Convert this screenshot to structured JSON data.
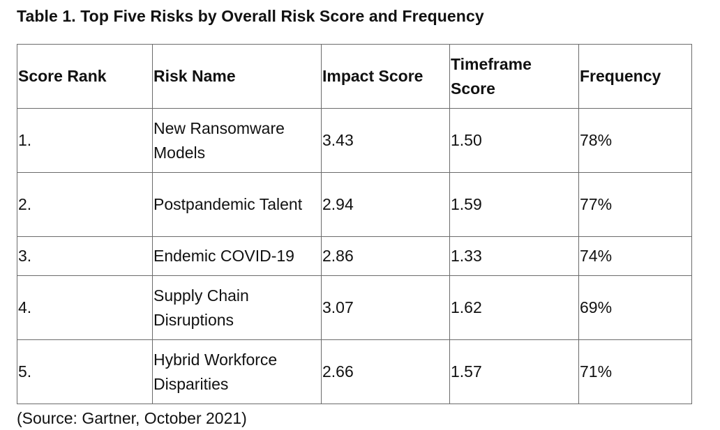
{
  "title": "Table 1. Top Five Risks by Overall Risk Score and Frequency",
  "headers": {
    "rank": "Score Rank",
    "name": "Risk Name",
    "impact": "Impact Score",
    "timeframe": "Timeframe Score",
    "frequency": "Frequency"
  },
  "rows": [
    {
      "rank": "1.",
      "name": "New Ransomware Models",
      "impact": "3.43",
      "timeframe": "1.50",
      "frequency": "78%"
    },
    {
      "rank": "2.",
      "name": "Postpandemic Talent",
      "impact": "2.94",
      "timeframe": "1.59",
      "frequency": "77%"
    },
    {
      "rank": "3.",
      "name": "Endemic COVID-19",
      "impact": "2.86",
      "timeframe": "1.33",
      "frequency": "74%"
    },
    {
      "rank": "4.",
      "name": "Supply Chain Disruptions",
      "impact": "3.07",
      "timeframe": "1.62",
      "frequency": "69%"
    },
    {
      "rank": "5.",
      "name": "Hybrid Workforce Disparities",
      "impact": "2.66",
      "timeframe": "1.57",
      "frequency": "71%"
    }
  ],
  "source": "(Source: Gartner, October 2021)"
}
